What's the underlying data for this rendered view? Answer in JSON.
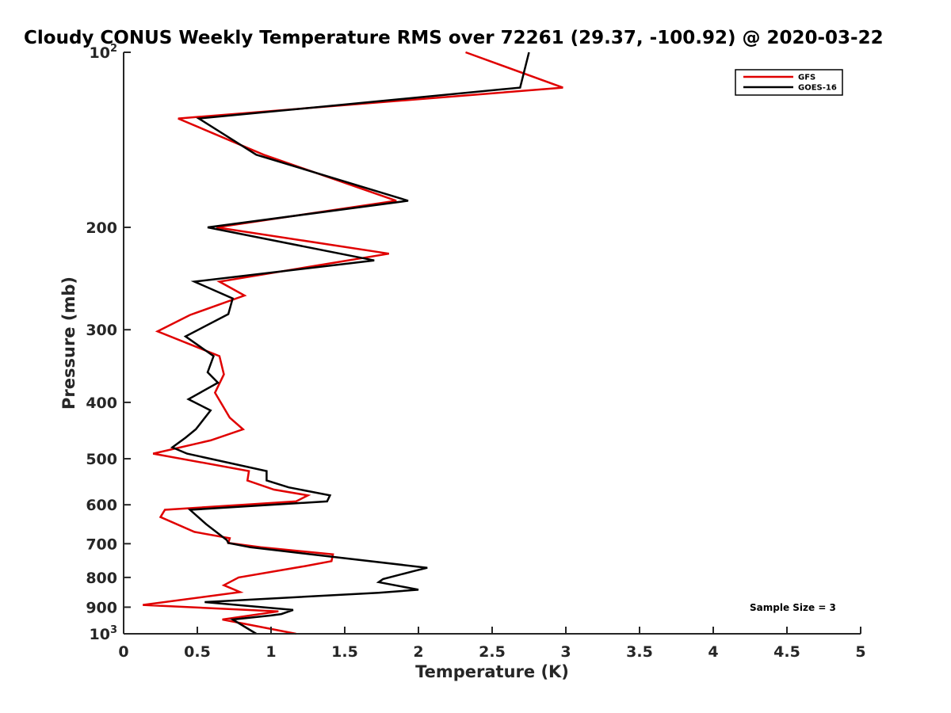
{
  "chart_data": {
    "type": "line",
    "title": "Cloudy CONUS Weekly Temperature RMS over 72261 (29.37, -100.92) @ 2020-03-22",
    "xlabel": "Temperature (K)",
    "ylabel": "Pressure (mb)",
    "xlim": [
      0,
      5
    ],
    "ylim": [
      100,
      1000
    ],
    "y_scale": "log",
    "y_reversed": true,
    "x_ticks": [
      "0",
      "0.5",
      "1",
      "1.5",
      "2",
      "2.5",
      "3",
      "3.5",
      "4",
      "4.5",
      "5"
    ],
    "y_ticks": [
      {
        "value": 100,
        "base": "10",
        "exp": "2"
      },
      {
        "value": 200,
        "label": "200"
      },
      {
        "value": 300,
        "label": "300"
      },
      {
        "value": 400,
        "label": "400"
      },
      {
        "value": 500,
        "label": "500"
      },
      {
        "value": 600,
        "label": "600"
      },
      {
        "value": 700,
        "label": "700"
      },
      {
        "value": 800,
        "label": "800"
      },
      {
        "value": 900,
        "label": "900"
      },
      {
        "value": 1000,
        "base": "10",
        "exp": "3"
      }
    ],
    "grid": false,
    "legend_position": "top-right",
    "annotation": "Sample Size = 3",
    "series": [
      {
        "name": "GFS",
        "color": "#e00000",
        "points": [
          [
            2.32,
            100
          ],
          [
            2.98,
            115
          ],
          [
            0.37,
            130
          ],
          [
            0.95,
            150
          ],
          [
            1.85,
            180
          ],
          [
            0.63,
            200
          ],
          [
            1.8,
            222
          ],
          [
            0.65,
            248
          ],
          [
            0.82,
            262
          ],
          [
            0.45,
            283
          ],
          [
            0.23,
            302
          ],
          [
            0.65,
            333
          ],
          [
            0.68,
            358
          ],
          [
            0.62,
            385
          ],
          [
            0.72,
            425
          ],
          [
            0.81,
            445
          ],
          [
            0.59,
            465
          ],
          [
            0.2,
            490
          ],
          [
            0.85,
            525
          ],
          [
            0.84,
            545
          ],
          [
            1.02,
            565
          ],
          [
            1.25,
            578
          ],
          [
            1.17,
            592
          ],
          [
            0.28,
            612
          ],
          [
            0.25,
            630
          ],
          [
            0.48,
            668
          ],
          [
            0.72,
            685
          ],
          [
            0.71,
            698
          ],
          [
            0.93,
            710
          ],
          [
            1.42,
            730
          ],
          [
            1.41,
            750
          ],
          [
            1.23,
            765
          ],
          [
            0.78,
            800
          ],
          [
            0.68,
            825
          ],
          [
            0.79,
            848
          ],
          [
            0.13,
            892
          ],
          [
            1.05,
            915
          ],
          [
            0.67,
            945
          ],
          [
            1.17,
            1000
          ]
        ]
      },
      {
        "name": "GOES-16",
        "color": "#000000",
        "points": [
          [
            2.75,
            100
          ],
          [
            2.69,
            115
          ],
          [
            0.51,
            130
          ],
          [
            0.9,
            150
          ],
          [
            1.93,
            180
          ],
          [
            0.57,
            200
          ],
          [
            1.7,
            228
          ],
          [
            0.48,
            248
          ],
          [
            0.74,
            265
          ],
          [
            0.71,
            282
          ],
          [
            0.42,
            308
          ],
          [
            0.61,
            333
          ],
          [
            0.57,
            355
          ],
          [
            0.64,
            370
          ],
          [
            0.44,
            395
          ],
          [
            0.59,
            413
          ],
          [
            0.49,
            445
          ],
          [
            0.42,
            460
          ],
          [
            0.33,
            478
          ],
          [
            0.43,
            490
          ],
          [
            0.97,
            525
          ],
          [
            0.97,
            545
          ],
          [
            1.12,
            560
          ],
          [
            1.4,
            578
          ],
          [
            1.38,
            592
          ],
          [
            0.45,
            612
          ],
          [
            0.56,
            648
          ],
          [
            0.7,
            690
          ],
          [
            0.71,
            698
          ],
          [
            0.86,
            710
          ],
          [
            2.06,
            770
          ],
          [
            1.97,
            780
          ],
          [
            1.76,
            805
          ],
          [
            1.73,
            815
          ],
          [
            2.0,
            840
          ],
          [
            1.73,
            850
          ],
          [
            0.55,
            882
          ],
          [
            1.15,
            910
          ],
          [
            1.07,
            925
          ],
          [
            1.0,
            930
          ],
          [
            0.74,
            945
          ],
          [
            0.9,
            1000
          ]
        ]
      }
    ]
  }
}
